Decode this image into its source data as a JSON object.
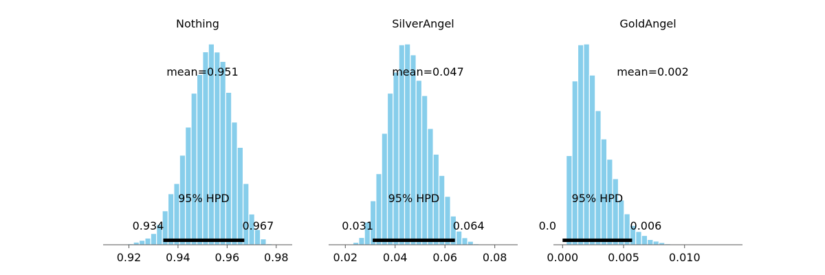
{
  "chart_data": [
    {
      "type": "bar",
      "title": "Nothing",
      "xlim": [
        0.9095,
        0.9865
      ],
      "xticks": [
        0.92,
        0.94,
        0.96,
        0.98
      ],
      "tick_labels": [
        "0.92",
        "0.94",
        "0.96",
        "0.98"
      ],
      "bin_start": 0.9195,
      "bin_width": 0.00235,
      "counts": [
        0.005,
        0.013,
        0.022,
        0.033,
        0.056,
        0.101,
        0.169,
        0.254,
        0.305,
        0.446,
        0.586,
        0.755,
        0.848,
        0.961,
        1.0,
        0.96,
        0.913,
        0.759,
        0.611,
        0.485,
        0.305,
        0.153,
        0.076,
        0.029,
        0.005
      ],
      "mean_label": "mean=0.951",
      "hpd_label": "95% HPD",
      "hpd": [
        0.934,
        0.967
      ],
      "hpd_low_label": "0.934",
      "hpd_high_label": "0.967",
      "color": "#87ceeb"
    },
    {
      "type": "bar",
      "title": "SilverAngel",
      "xlim": [
        0.0133,
        0.0892
      ],
      "xticks": [
        0.02,
        0.04,
        0.06,
        0.08
      ],
      "tick_labels": [
        "0.02",
        "0.04",
        "0.06",
        "0.08"
      ],
      "bin_start": 0.0231,
      "bin_width": 0.0023,
      "counts": [
        0.012,
        0.036,
        0.113,
        0.219,
        0.354,
        0.555,
        0.755,
        0.86,
        0.996,
        1.0,
        0.946,
        0.819,
        0.743,
        0.579,
        0.451,
        0.345,
        0.241,
        0.143,
        0.068,
        0.035,
        0.017,
        0.005
      ],
      "mean_label": "mean=0.047",
      "hpd_label": "95% HPD",
      "hpd": [
        0.031,
        0.064
      ],
      "hpd_low_label": "0.031",
      "hpd_high_label": "0.064",
      "color": "#87ceeb"
    },
    {
      "type": "bar",
      "title": "GoldAngel",
      "xlim": [
        -0.00075,
        0.01475
      ],
      "xticks": [
        0.0,
        0.005,
        0.01
      ],
      "tick_labels": [
        "0.000",
        "0.005",
        "0.010"
      ],
      "bin_start": 0.0003,
      "bin_width": 0.000475,
      "counts": [
        0.444,
        0.816,
        0.996,
        1.0,
        0.845,
        0.668,
        0.527,
        0.426,
        0.329,
        0.223,
        0.154,
        0.096,
        0.066,
        0.046,
        0.026,
        0.018,
        0.011,
        0.005
      ],
      "mean_label": "mean=0.002",
      "hpd_label": "95% HPD",
      "hpd": [
        0.0,
        0.0057
      ],
      "hpd_low_label": "0.0",
      "hpd_high_label": "0.006",
      "color": "#87ceeb"
    }
  ]
}
